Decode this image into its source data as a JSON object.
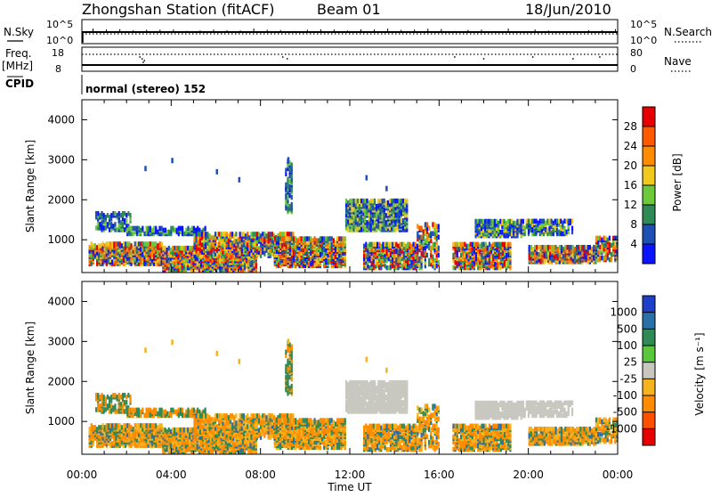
{
  "header": {
    "station": "Zhongshan Station (fitACF)",
    "beam": "Beam 01",
    "date": "18/Jun/2010"
  },
  "panels": {
    "nsky_label": "N.Sky",
    "nsky_ticks": [
      "10^5",
      "10^0"
    ],
    "nsearch_label": "N.Search",
    "nsearch_ticks": [
      "10^5",
      "10^0"
    ],
    "freq_label": "Freq.",
    "freq_unit": "[MHz]",
    "freq_ticks": [
      "18",
      "8"
    ],
    "nave_label": "Nave",
    "nave_ticks": [
      "80",
      "0"
    ],
    "cpid_label": "CPID",
    "cpid_text": "normal (stereo) 152"
  },
  "colors": {
    "power_scale": [
      "#0a14ff",
      "#1e50b4",
      "#2f8a55",
      "#6ec83c",
      "#f0c81e",
      "#ff8c00",
      "#ff5a00",
      "#e60000"
    ],
    "velocity_scale": [
      "#1e40c8",
      "#2a70a8",
      "#2f8a55",
      "#5ac83c",
      "#c8c8c0",
      "#f5b41e",
      "#ff8c00",
      "#ff5000",
      "#e60000"
    ],
    "ground_scatter": "#c8c8c0"
  },
  "chart_data": [
    {
      "type": "heatmap",
      "title": "Power",
      "ylabel": "Slant Range [km]",
      "xlabel": "Time UT",
      "x_ticks": [
        "00:00",
        "04:00",
        "08:00",
        "12:00",
        "16:00",
        "20:00",
        "00:00"
      ],
      "y_ticks": [
        "1000",
        "2000",
        "3000",
        "4000"
      ],
      "ylim": [
        180,
        4500
      ],
      "colorbar_label": "Power [dB]",
      "colorbar_ticks": [
        "4",
        "8",
        "12",
        "16",
        "20",
        "24",
        "28"
      ],
      "clim": [
        0,
        30
      ]
    },
    {
      "type": "heatmap",
      "title": "Velocity",
      "ylabel": "Slant Range [km]",
      "xlabel": "Time UT",
      "x_ticks": [
        "00:00",
        "04:00",
        "08:00",
        "12:00",
        "16:00",
        "20:00",
        "00:00"
      ],
      "y_ticks": [
        "1000",
        "2000",
        "3000",
        "4000"
      ],
      "ylim": [
        180,
        4500
      ],
      "colorbar_label": "Velocity [m s⁻¹]",
      "colorbar_ticks": [
        "1000",
        "500",
        "100",
        "25",
        "-25",
        "-100",
        "-500",
        "-1000"
      ]
    }
  ]
}
